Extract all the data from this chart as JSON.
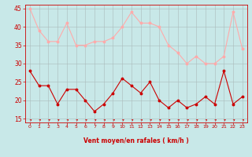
{
  "hours": [
    0,
    1,
    2,
    3,
    4,
    5,
    6,
    7,
    8,
    9,
    10,
    11,
    12,
    13,
    14,
    15,
    16,
    17,
    18,
    19,
    20,
    21,
    22,
    23
  ],
  "wind_avg": [
    28,
    24,
    24,
    19,
    23,
    23,
    20,
    17,
    19,
    22,
    26,
    24,
    22,
    25,
    20,
    18,
    20,
    18,
    19,
    21,
    19,
    28,
    19,
    21
  ],
  "wind_gust": [
    45,
    39,
    36,
    36,
    41,
    35,
    35,
    36,
    36,
    37,
    40,
    44,
    41,
    41,
    40,
    35,
    33,
    30,
    32,
    30,
    30,
    32,
    44,
    34
  ],
  "avg_color": "#cc0000",
  "gust_color": "#ffaaaa",
  "bg_color": "#c8e8e8",
  "grid_color": "#aabbbb",
  "xlabel": "Vent moyen/en rafales ( km/h )",
  "xlabel_color": "#cc0000",
  "tick_color": "#cc0000",
  "ylim_min": 14,
  "ylim_max": 46,
  "yticks": [
    15,
    20,
    25,
    30,
    35,
    40,
    45
  ],
  "arrow_color": "#cc0000"
}
